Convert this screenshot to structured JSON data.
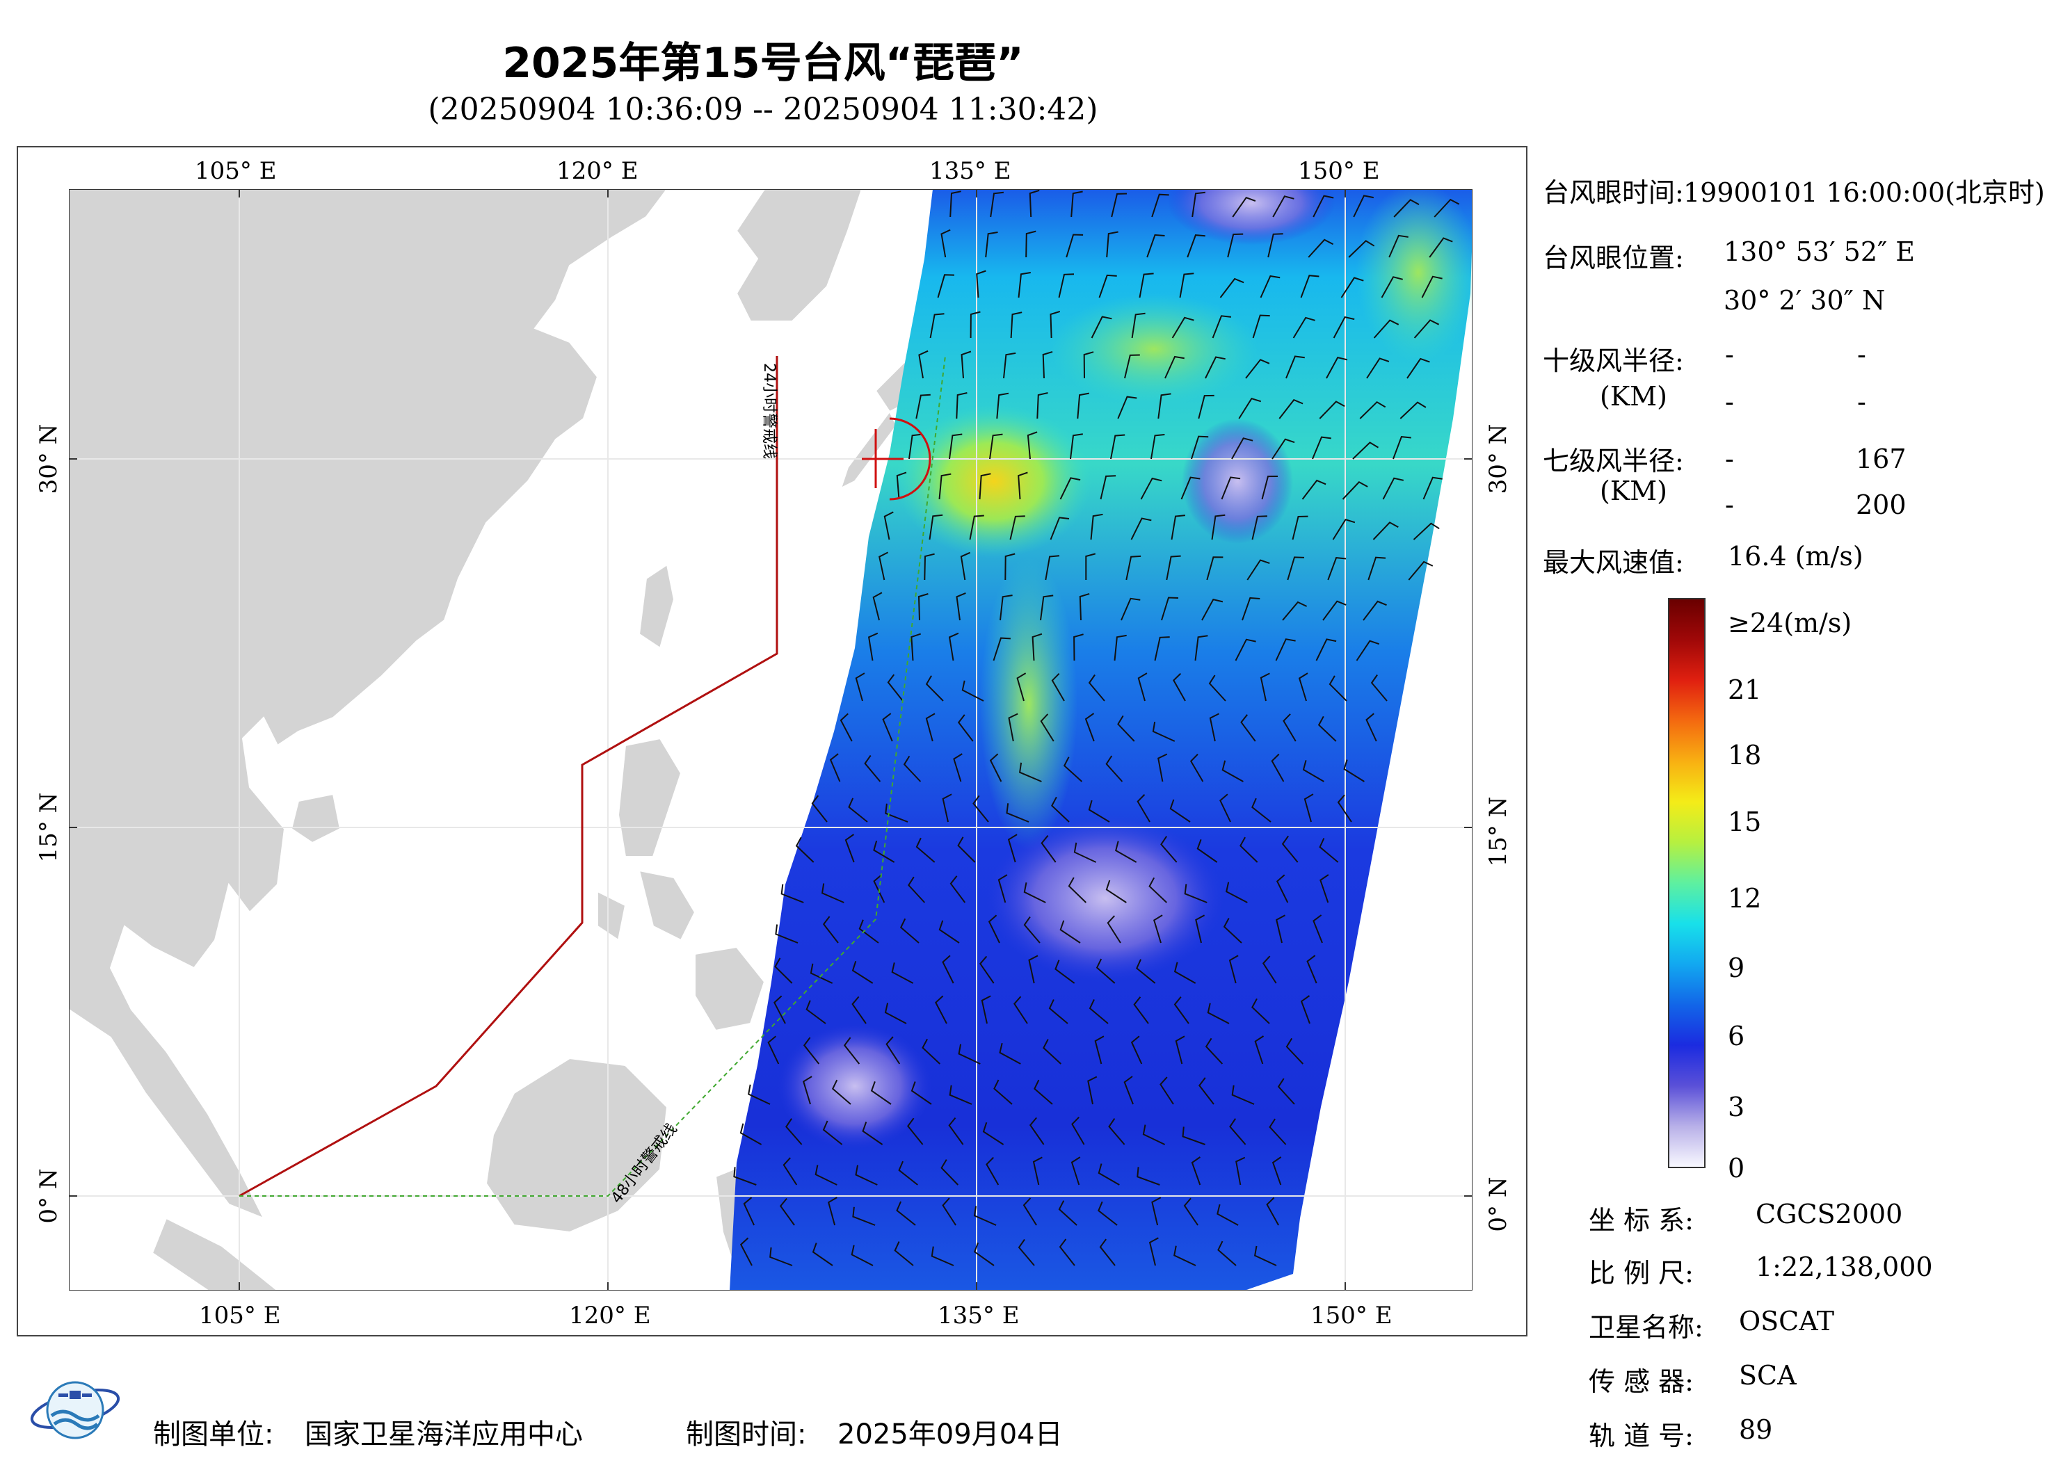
{
  "title": "2025年第15号台风“琵琶”",
  "time_range": "(20250904 10:36:09 -- 20250904 11:30:42)",
  "axes": {
    "lon_labels": [
      "105° E",
      "120° E",
      "135° E",
      "150° E"
    ],
    "lat_labels": [
      "30° N",
      "15° N",
      "0° N"
    ]
  },
  "map_labels": {
    "warn24": "24小时警戒线",
    "warn48": "48小时警戒线"
  },
  "info": {
    "eye_time_label": "台风眼时间:",
    "eye_time_value": "19900101 16:00:00(北京时)",
    "eye_pos_label": "台风眼位置:",
    "eye_lon": "130° 53′ 52″ E",
    "eye_lat": "30° 2′ 30″ N",
    "r10_label": "十级风半径:",
    "r10_unit": "(KM)",
    "r10_a1": "-",
    "r10_b1": "-",
    "r10_a2": "-",
    "r10_b2": "-",
    "r7_label": "七级风半径:",
    "r7_unit": "(KM)",
    "r7_a1": "-",
    "r7_b1": "167",
    "r7_a2": "-",
    "r7_b2": "200",
    "maxwind_label": "最大风速值:",
    "maxwind_value": "16.4  (m/s)"
  },
  "colorbar": {
    "labels": [
      "≥24(m/s)",
      "21",
      "18",
      "15",
      "12",
      "9",
      "6",
      "3",
      "0"
    ],
    "colors": [
      "#f8f8ff",
      "#b8b0e8",
      "#5a50d8",
      "#1b2be0",
      "#1266e8",
      "#12a8f0",
      "#18e0ea",
      "#5ef0a0",
      "#b6f040",
      "#f4ec18",
      "#f8b012",
      "#f46a10",
      "#e02010",
      "#a00808",
      "#6a0000"
    ]
  },
  "meta": {
    "crs_label": "坐 标 系:",
    "crs_value": "CGCS2000",
    "scale_label": "比 例 尺:",
    "scale_value": "1:22,138,000",
    "sat_label": "卫星名称:",
    "sat_value": "OSCAT",
    "sensor_label": "传 感 器:",
    "sensor_value": "SCA",
    "orbit_label": "轨 道 号:",
    "orbit_value": "89"
  },
  "footer": {
    "unit_label": "制图单位:",
    "unit_value": "国家卫星海洋应用中心",
    "date_label": "制图时间:",
    "date_value": "2025年09月04日"
  }
}
